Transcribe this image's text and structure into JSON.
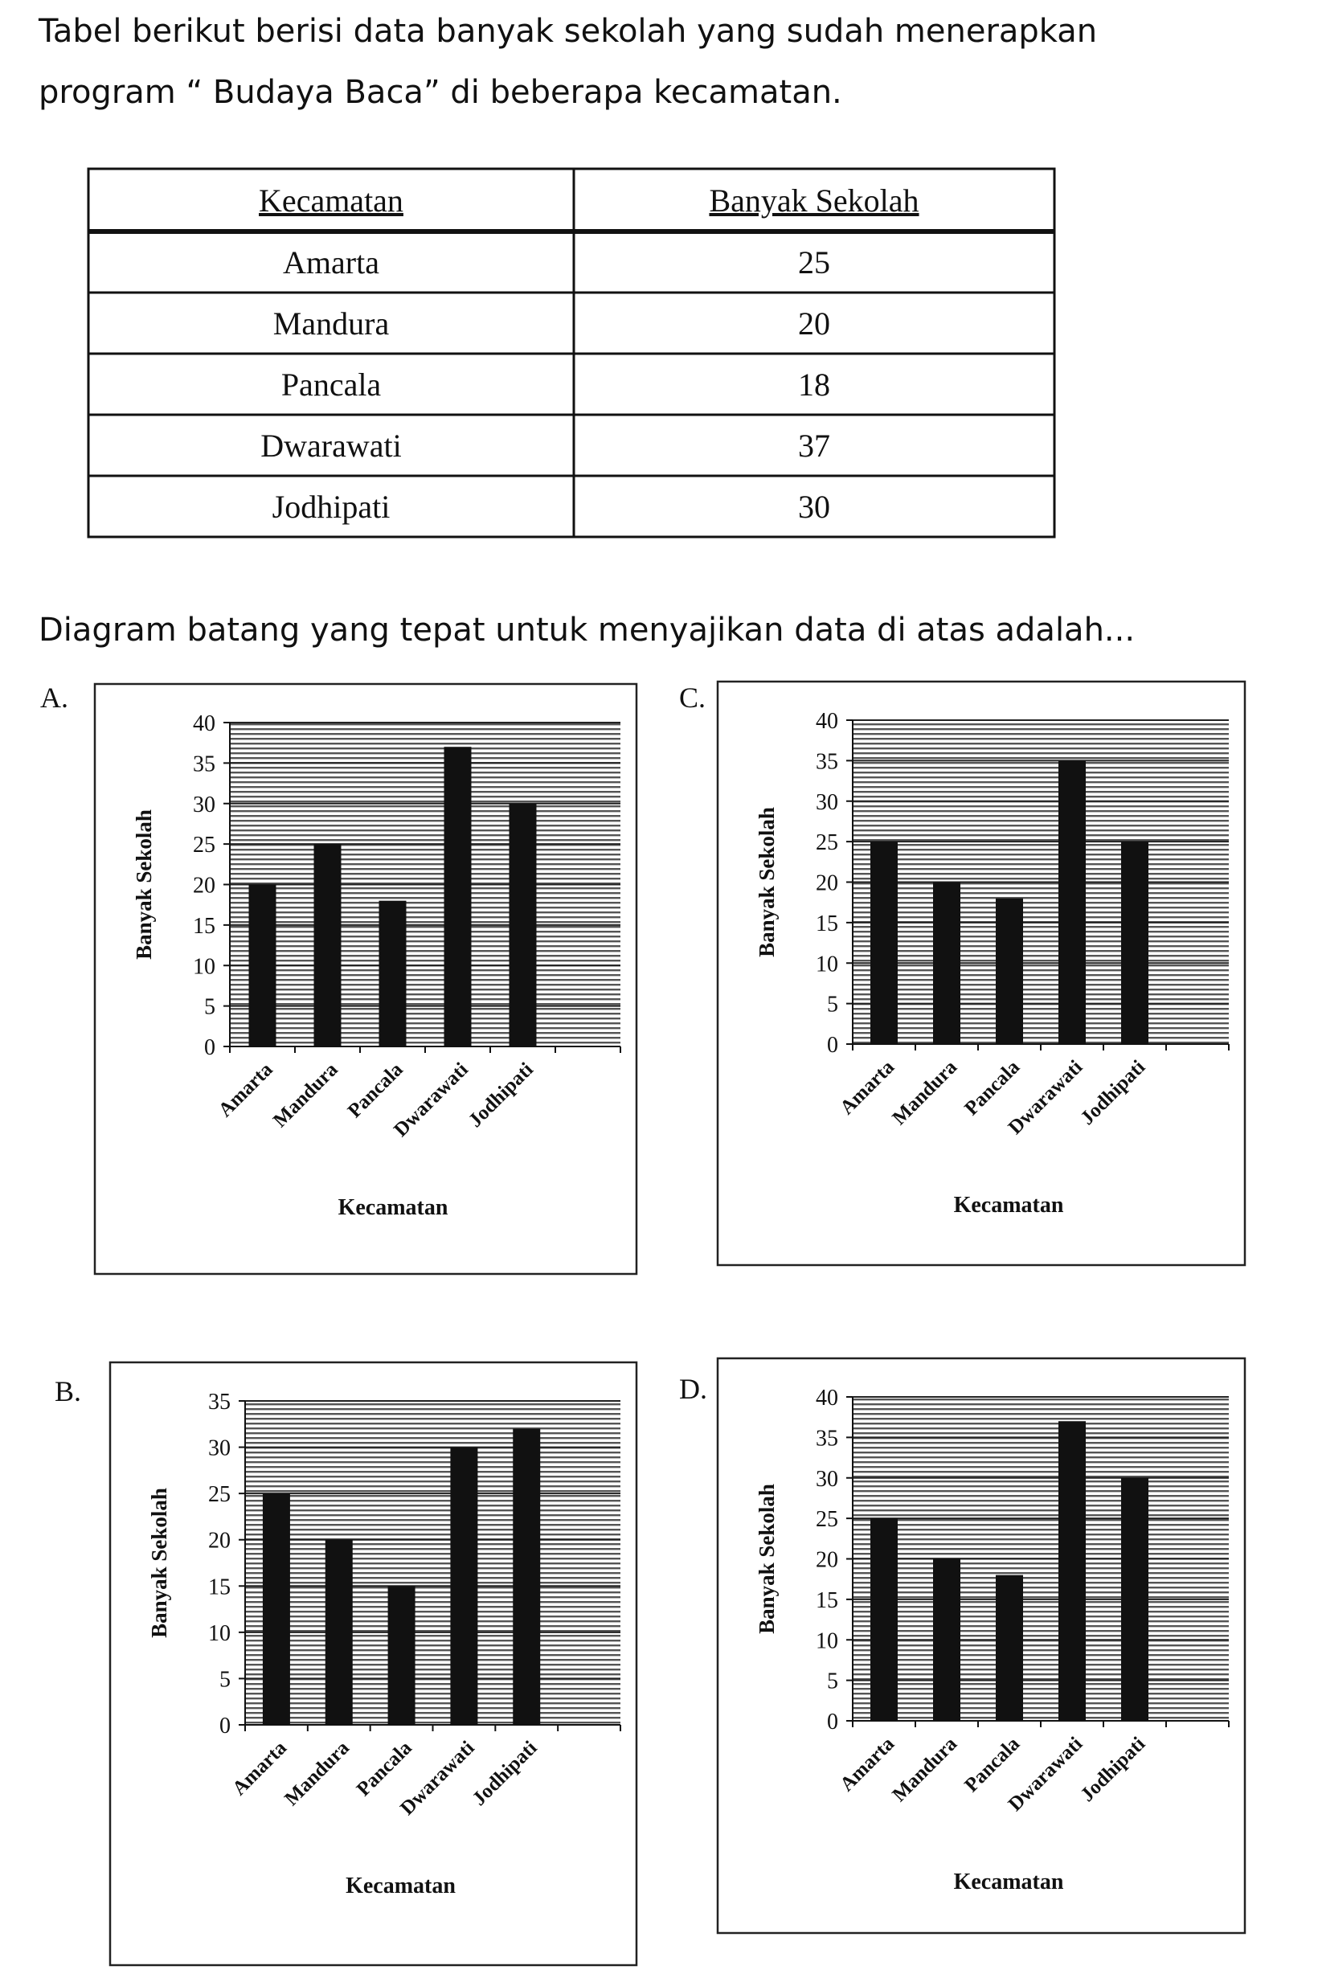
{
  "question": {
    "lines": [
      "Tabel berikut berisi data banyak sekolah yang sudah menerapkan",
      "program “ Budaya Baca” di beberapa kecamatan."
    ]
  },
  "table": {
    "header": [
      "Kecamatan",
      "Banyak Sekolah"
    ],
    "rows": [
      [
        "Amarta",
        25
      ],
      [
        "Mandura",
        20
      ],
      [
        "Pancala",
        18
      ],
      [
        "Dwarawati",
        37
      ],
      [
        "Jodhipati",
        30
      ]
    ]
  },
  "prompt": "Diagram batang yang tepat untuk menyajikan data di atas adalah...",
  "options": [
    {
      "letter": "A.",
      "chart_data": {
        "type": "bar",
        "ylabel": "Banyak Sekolah",
        "xlabel": "Kecamatan",
        "categories": [
          "Amarta",
          "Mandura",
          "Pancala",
          "Dwarawati",
          "Jodhipati"
        ],
        "values": [
          20,
          25,
          18,
          37,
          30
        ],
        "color": "#111111",
        "ylim": [
          0,
          40
        ],
        "yticks": [
          0,
          5,
          10,
          15,
          20,
          25,
          30,
          35,
          40
        ],
        "grid": true
      }
    },
    {
      "letter": "B.",
      "chart_data": {
        "type": "bar",
        "ylabel": "Banyak Sekolah",
        "xlabel": "Kecamatan",
        "categories": [
          "Amarta",
          "Mandura",
          "Pancala",
          "Dwarawati",
          "Jodhipati"
        ],
        "values": [
          25,
          20,
          15,
          30,
          32
        ],
        "color": "#111111",
        "ylim": [
          0,
          35
        ],
        "yticks": [
          0,
          5,
          10,
          15,
          20,
          25,
          30,
          35
        ],
        "grid": true
      }
    },
    {
      "letter": "C.",
      "chart_data": {
        "type": "bar",
        "ylabel": "Banyak Sekolah",
        "xlabel": "Kecamatan",
        "categories": [
          "Amarta",
          "Mandura",
          "Pancala",
          "Dwarawati",
          "Jodhipati"
        ],
        "values": [
          25,
          20,
          18,
          35,
          25
        ],
        "color": "#111111",
        "ylim": [
          0,
          40
        ],
        "yticks": [
          0,
          5,
          10,
          15,
          20,
          25,
          30,
          35,
          40
        ],
        "grid": true
      }
    },
    {
      "letter": "D.",
      "chart_data": {
        "type": "bar",
        "ylabel": "Banyak Sekolah",
        "xlabel": "Kecamatan",
        "categories": [
          "Amarta",
          "Mandura",
          "Pancala",
          "Dwarawati",
          "Jodhipati"
        ],
        "values": [
          25,
          20,
          18,
          37,
          30
        ],
        "color": "#111111",
        "ylim": [
          0,
          40
        ],
        "yticks": [
          0,
          5,
          10,
          15,
          20,
          25,
          30,
          35,
          40
        ],
        "grid": true
      }
    }
  ]
}
